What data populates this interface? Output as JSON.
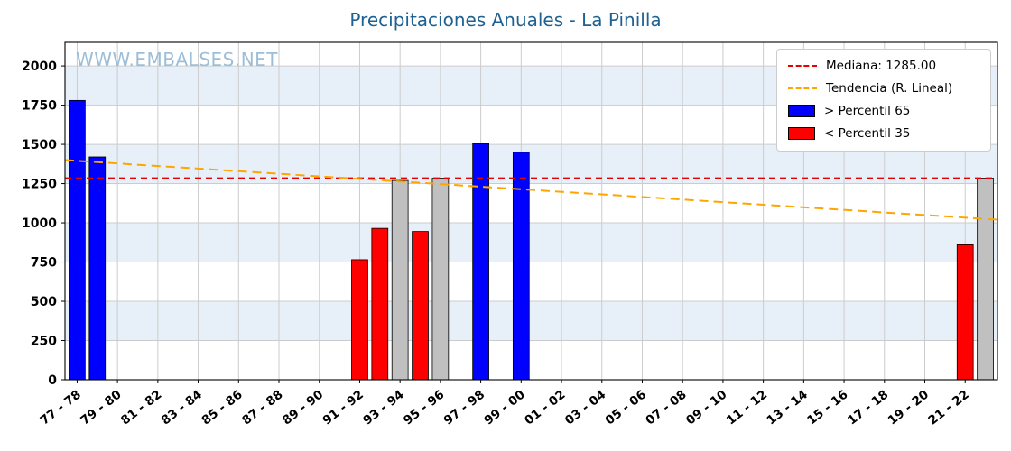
{
  "chart_data": {
    "type": "bar",
    "title": "Precipitaciones Anuales - La Pinilla",
    "watermark": "WWW.EMBALSES.NET",
    "grid": true,
    "legend_position": "upper right",
    "ylim": [
      0,
      2150
    ],
    "yticks": [
      0,
      250,
      500,
      750,
      1000,
      1250,
      1500,
      1750,
      2000
    ],
    "x_index_range": [
      -0.6,
      45.6
    ],
    "x_ticks": [
      {
        "index": 0,
        "label": "77 - 78"
      },
      {
        "index": 2,
        "label": "79 - 80"
      },
      {
        "index": 4,
        "label": "81 - 82"
      },
      {
        "index": 6,
        "label": "83 - 84"
      },
      {
        "index": 8,
        "label": "85 - 86"
      },
      {
        "index": 10,
        "label": "87 - 88"
      },
      {
        "index": 12,
        "label": "89 - 90"
      },
      {
        "index": 14,
        "label": "91 - 92"
      },
      {
        "index": 16,
        "label": "93 - 94"
      },
      {
        "index": 18,
        "label": "95 - 96"
      },
      {
        "index": 20,
        "label": "97 - 98"
      },
      {
        "index": 22,
        "label": "99 - 00"
      },
      {
        "index": 24,
        "label": "01 - 02"
      },
      {
        "index": 26,
        "label": "03 - 04"
      },
      {
        "index": 28,
        "label": "05 - 06"
      },
      {
        "index": 30,
        "label": "07 - 08"
      },
      {
        "index": 32,
        "label": "09 - 10"
      },
      {
        "index": 34,
        "label": "11 - 12"
      },
      {
        "index": 36,
        "label": "13 - 14"
      },
      {
        "index": 38,
        "label": "15 - 16"
      },
      {
        "index": 40,
        "label": "17 - 18"
      },
      {
        "index": 42,
        "label": "19 - 20"
      },
      {
        "index": 44,
        "label": "21 - 22"
      }
    ],
    "bars": [
      {
        "season": "77 - 78",
        "index": 0,
        "value": 1780,
        "category": "p65_plus"
      },
      {
        "season": "78 - 79",
        "index": 1,
        "value": 1420,
        "category": "p65_plus"
      },
      {
        "season": "91 - 92",
        "index": 14,
        "value": 765,
        "category": "p35_minus"
      },
      {
        "season": "92 - 93",
        "index": 15,
        "value": 965,
        "category": "p35_minus"
      },
      {
        "season": "93 - 94",
        "index": 16,
        "value": 1270,
        "category": "mid"
      },
      {
        "season": "94 - 95",
        "index": 17,
        "value": 945,
        "category": "p35_minus"
      },
      {
        "season": "95 - 96",
        "index": 18,
        "value": 1285,
        "category": "mid"
      },
      {
        "season": "97 - 98",
        "index": 20,
        "value": 1505,
        "category": "p65_plus"
      },
      {
        "season": "99 - 00",
        "index": 22,
        "value": 1450,
        "category": "p65_plus"
      },
      {
        "season": "21 - 22",
        "index": 44,
        "value": 860,
        "category": "p35_minus"
      },
      {
        "season": "22 - 23",
        "index": 45,
        "value": 1285,
        "category": "mid"
      }
    ],
    "median": {
      "value": 1285,
      "label": "Mediana: 1285.00"
    },
    "trend": {
      "label": "Tendencia (R. Lineal)",
      "start_index": -0.6,
      "start_value": 1400,
      "end_index": 45.6,
      "end_value": 1020
    },
    "legend": [
      {
        "type": "line",
        "color": "#e60000",
        "label": "Mediana: 1285.00"
      },
      {
        "type": "line",
        "color": "#ffa500",
        "label": "Tendencia (R. Lineal)"
      },
      {
        "type": "patch",
        "color": "#0000ff",
        "label": "> Percentil 65"
      },
      {
        "type": "patch",
        "color": "#ff0000",
        "label": "< Percentil 35"
      }
    ],
    "colors": {
      "p65_plus": "#0000ff",
      "p35_minus": "#ff0000",
      "mid": "#c0c0c0",
      "median_line": "#e60000",
      "trend_line": "#ffa500",
      "title": "#1d6292",
      "watermark": "#9dbed8",
      "band": "#e7f0f8",
      "gridline": "#cccccc"
    }
  }
}
